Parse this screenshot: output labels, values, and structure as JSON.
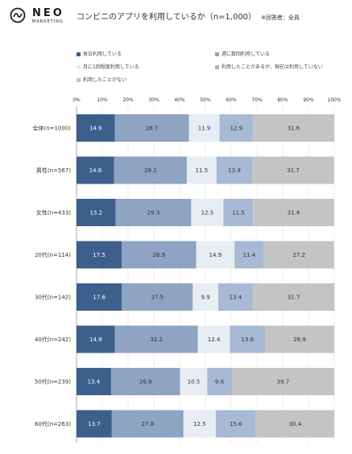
{
  "header": {
    "logo_text": "NEO",
    "logo_sub": "MARKETING",
    "title": "コンビニのアプリを利用しているか（n=1,000）",
    "note": "※回答者：全員"
  },
  "colors": {
    "s1": "#3d5f8c",
    "s2": "#8fa3c3",
    "s3": "#e7edf3",
    "s4": "#a7b9d5",
    "s5": "#c4c4c4"
  },
  "chart_data": {
    "type": "bar",
    "orientation": "horizontal",
    "stacked": "percent",
    "xlim": [
      0,
      100
    ],
    "x_ticks": [
      "0%",
      "10%",
      "20%",
      "30%",
      "40%",
      "50%",
      "60%",
      "70%",
      "80%",
      "90%",
      "100%"
    ],
    "categories": [
      "全体(n=1000)",
      "男性(n=567)",
      "女性(n=433)",
      "20代(n=114)",
      "30代(n=142)",
      "40代(n=242)",
      "50代(n=239)",
      "60代(n=263)"
    ],
    "series": [
      {
        "name": "毎日利用している",
        "values": [
          14.9,
          14.6,
          15.2,
          17.5,
          17.6,
          14.9,
          13.4,
          13.7
        ]
      },
      {
        "name": "週に数回利用している",
        "values": [
          28.7,
          28.2,
          29.3,
          28.9,
          27.5,
          32.2,
          26.8,
          27.8
        ]
      },
      {
        "name": "月に1回程度利用している",
        "values": [
          11.9,
          11.5,
          12.5,
          14.9,
          9.9,
          12.4,
          10.5,
          12.5
        ]
      },
      {
        "name": "利用したことがあるが、現在は利用していない",
        "values": [
          12.9,
          13.9,
          11.5,
          11.4,
          13.4,
          13.6,
          9.6,
          15.6
        ]
      },
      {
        "name": "利用したことがない",
        "values": [
          31.6,
          31.7,
          31.4,
          27.2,
          31.7,
          26.9,
          39.7,
          30.4
        ]
      }
    ],
    "grid": true,
    "legend_position": "top"
  }
}
